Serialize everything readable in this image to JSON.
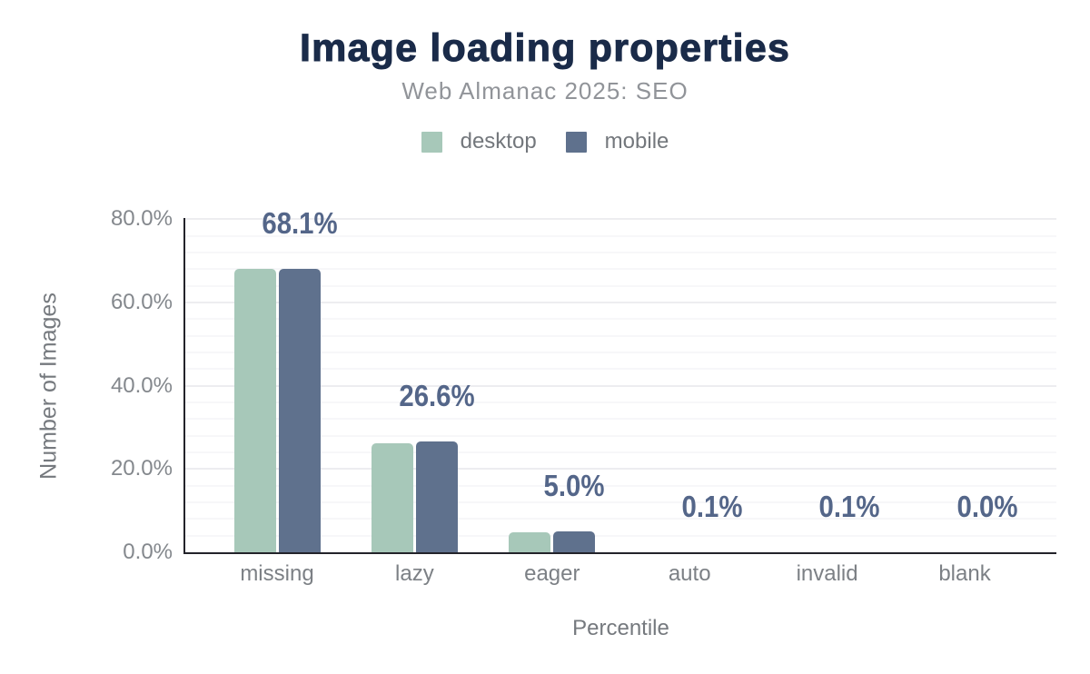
{
  "chart": {
    "title": "Image loading properties",
    "subtitle": "Web Almanac 2025: SEO"
  },
  "chart_data": {
    "type": "bar",
    "title": "Image loading properties",
    "subtitle": "Web Almanac 2025: SEO",
    "categories": [
      "missing",
      "lazy",
      "eager",
      "auto",
      "invalid",
      "blank"
    ],
    "series": [
      {
        "name": "desktop",
        "color": "#a7c8b9",
        "values": [
          68.1,
          26.1,
          4.7,
          0.1,
          0.1,
          0.0
        ]
      },
      {
        "name": "mobile",
        "color": "#5f718d",
        "values": [
          68.1,
          26.6,
          5.0,
          0.1,
          0.1,
          0.0
        ]
      }
    ],
    "data_labels": [
      "68.1%",
      "26.6%",
      "5.0%",
      "0.1%",
      "0.1%",
      "0.0%"
    ],
    "xlabel": "Percentile",
    "ylabel": "Number of Images",
    "ylim": [
      0,
      80
    ],
    "y_ticks": [
      "0.0%",
      "20.0%",
      "40.0%",
      "60.0%",
      "80.0%"
    ],
    "y_tick_values": [
      0,
      20,
      40,
      60,
      80
    ],
    "grid": "horizontal; major every 20%, minor every 4%",
    "legend_position": "top-center"
  },
  "colors": {
    "background": "#ffffff",
    "title": "#1a2b49",
    "subtitle": "#919499",
    "desktop_series": "#a7c8b9",
    "mobile_series": "#5f718d",
    "data_label": "#546689",
    "axis_line": "#23232a",
    "tick_label": "#84888d",
    "axis_title": "#75797e",
    "gridline_major": "#ededf0",
    "gridline_minor": "#f7f7f9"
  }
}
